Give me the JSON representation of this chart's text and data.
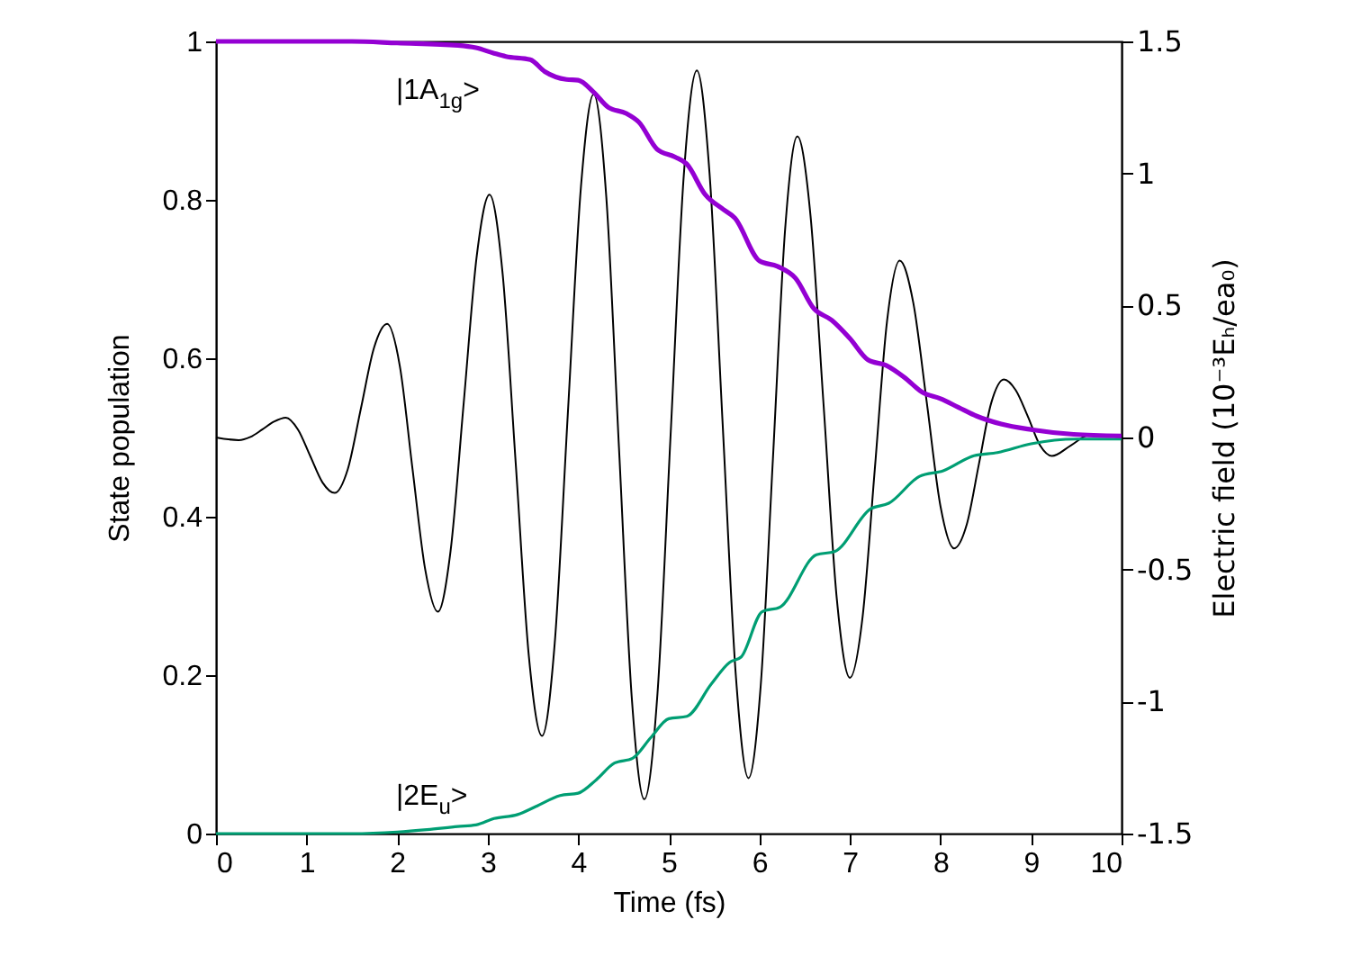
{
  "chart_data": {
    "type": "line",
    "xlabel": "Time (fs)",
    "ylabel": "State population",
    "y2label": "Electric field (10⁻³Eₕ/ea₀)",
    "xlim": [
      0,
      10
    ],
    "xticks": [
      0,
      1,
      2,
      3,
      4,
      5,
      6,
      7,
      8,
      9,
      10
    ],
    "ylim": [
      0,
      1
    ],
    "yticks": [
      0,
      0.2,
      0.4,
      0.6,
      0.8,
      1
    ],
    "y2lim": [
      -1.5,
      1.5
    ],
    "y2ticks": [
      -1.5,
      -1,
      -0.5,
      0,
      0.5,
      1,
      1.5
    ],
    "grid": false,
    "marker": "none",
    "line_style": "solid",
    "series": [
      {
        "color": "#000000",
        "axis": "y2",
        "x": [
          0,
          0.25,
          0.38,
          0.51,
          0.64,
          0.77,
          0.905,
          1.04,
          1.175,
          1.31,
          1.455,
          1.6,
          1.745,
          1.89,
          2.03,
          2.17,
          2.31,
          2.45,
          2.59,
          2.735,
          2.88,
          3.02,
          3.165,
          3.31,
          3.455,
          3.6,
          3.74,
          3.885,
          4.03,
          4.17,
          4.31,
          4.45,
          4.59,
          4.73,
          4.875,
          5.02,
          5.165,
          5.31,
          5.45,
          5.595,
          5.74,
          5.88,
          6.015,
          6.15,
          6.285,
          6.42,
          6.565,
          6.71,
          6.855,
          7.0,
          7.14,
          7.275,
          7.41,
          7.55,
          7.7,
          7.85,
          8.0,
          8.15,
          8.29,
          8.425,
          8.56,
          8.7,
          8.83,
          8.965,
          9.1,
          9.23,
          9.44,
          9.65,
          10
        ],
        "values": [
          0,
          -0.01,
          0.002,
          0.03,
          0.06,
          0.075,
          0.03,
          -0.07,
          -0.17,
          -0.21,
          -0.12,
          0.11,
          0.34,
          0.43,
          0.27,
          -0.12,
          -0.5,
          -0.66,
          -0.43,
          0.13,
          0.69,
          0.92,
          0.62,
          -0.1,
          -0.83,
          -1.13,
          -0.78,
          0.09,
          0.95,
          1.3,
          0.91,
          -0.04,
          -0.98,
          -1.37,
          -0.97,
          0.01,
          0.99,
          1.39,
          1.0,
          0.05,
          -0.9,
          -1.29,
          -0.94,
          -0.08,
          0.79,
          1.14,
          0.84,
          0.12,
          -0.61,
          -0.91,
          -0.68,
          -0.12,
          0.44,
          0.67,
          0.51,
          0.13,
          -0.26,
          -0.42,
          -0.33,
          -0.1,
          0.13,
          0.22,
          0.18,
          0.08,
          -0.03,
          -0.07,
          -0.03,
          0.01,
          0
        ]
      },
      {
        "color": "#009e73",
        "x": [
          0,
          1.5,
          2,
          2.33,
          2.67,
          2.87,
          3.07,
          3.33,
          3.53,
          3.8,
          4.0,
          4.2,
          4.4,
          4.6,
          4.8,
          5.0,
          5.2,
          5.47,
          5.67,
          5.8,
          6.03,
          6.23,
          6.63,
          6.83,
          7.23,
          7.43,
          7.77,
          8.03,
          8.37,
          8.63,
          9.0,
          9.5,
          10
        ],
        "values": [
          0,
          0,
          0.002,
          0.005,
          0.009,
          0.011,
          0.019,
          0.024,
          0.034,
          0.048,
          0.051,
          0.068,
          0.089,
          0.095,
          0.121,
          0.145,
          0.148,
          0.189,
          0.216,
          0.223,
          0.28,
          0.286,
          0.352,
          0.356,
          0.41,
          0.417,
          0.451,
          0.458,
          0.477,
          0.481,
          0.492,
          0.498,
          0.498
        ]
      },
      {
        "color": "#9400d3",
        "x": [
          0,
          1.5,
          2,
          2.67,
          2.87,
          3.07,
          3.2,
          3.47,
          3.63,
          3.87,
          4.0,
          4.17,
          4.33,
          4.53,
          4.67,
          4.87,
          5.07,
          5.2,
          5.4,
          5.6,
          5.73,
          6.0,
          6.2,
          6.4,
          6.6,
          6.8,
          7.0,
          7.2,
          7.4,
          7.6,
          7.8,
          8.0,
          8.2,
          8.4,
          8.67,
          9.0,
          9.47,
          10
        ],
        "values": [
          1,
          1,
          0.998,
          0.995,
          0.992,
          0.985,
          0.981,
          0.977,
          0.962,
          0.952,
          0.951,
          0.936,
          0.917,
          0.909,
          0.898,
          0.864,
          0.854,
          0.845,
          0.807,
          0.788,
          0.777,
          0.723,
          0.716,
          0.701,
          0.663,
          0.648,
          0.625,
          0.598,
          0.591,
          0.576,
          0.557,
          0.549,
          0.538,
          0.527,
          0.517,
          0.51,
          0.504,
          0.502
        ]
      }
    ],
    "annotations": [
      "|1A$_{1g}$>",
      "|2E$_{u}$>"
    ]
  }
}
